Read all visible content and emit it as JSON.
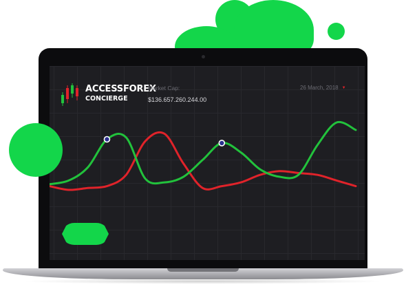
{
  "brand": {
    "name": "ACCESSFOREX",
    "sub": "CONCIERGE",
    "logo_icon": "candlestick-logo-icon"
  },
  "market": {
    "label": "Market Cap:",
    "value": "$136.657.260.244.00"
  },
  "date_filter": {
    "value": "26 March, 2018",
    "icon": "caret-down-icon"
  },
  "colors": {
    "accent_green": "#13d64a",
    "line_green": "#22c23c",
    "line_red": "#e0232a",
    "screen_bg": "#1e1e22"
  },
  "chart_data": {
    "type": "line",
    "grid": true,
    "series": [
      {
        "color": "#22c23c",
        "values": [
          3,
          5,
          12,
          27,
          28,
          6,
          4,
          7,
          16,
          25,
          20,
          11,
          7,
          8,
          24,
          36,
          32
        ]
      },
      {
        "color": "#e0232a",
        "values": [
          2,
          0,
          1,
          2,
          8,
          26,
          30,
          14,
          1,
          2,
          4,
          8,
          10,
          9,
          8,
          5,
          2
        ]
      }
    ],
    "markers": [
      {
        "series": 0,
        "index": 3
      },
      {
        "series": 0,
        "index": 9
      }
    ]
  }
}
